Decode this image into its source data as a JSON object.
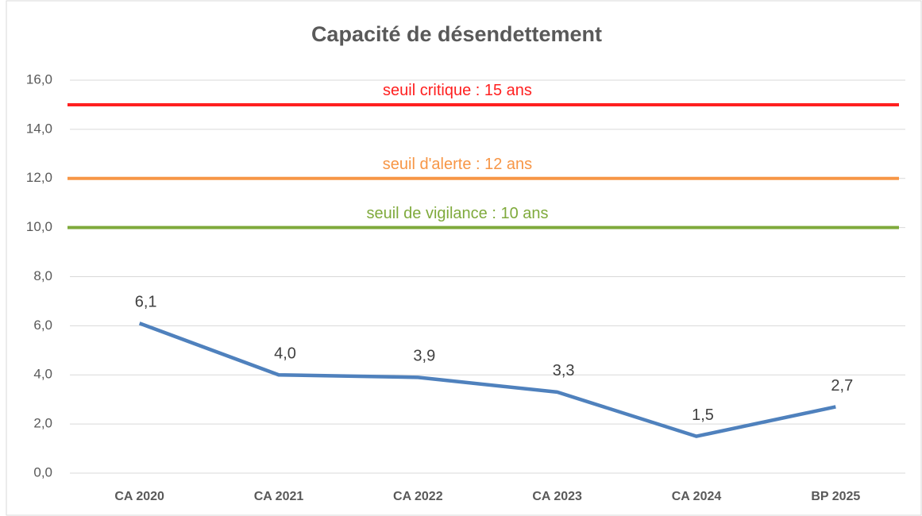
{
  "chart_data": {
    "type": "line",
    "title": "Capacité de désendettement",
    "categories": [
      "CA 2020",
      "CA 2021",
      "CA 2022",
      "CA 2023",
      "CA 2024",
      "BP 2025"
    ],
    "series": [
      {
        "color": "#4f81bd",
        "values": [
          6.1,
          4.0,
          3.9,
          3.3,
          1.5,
          2.7
        ],
        "value_labels": [
          "6,1",
          "4,0",
          "3,9",
          "3,3",
          "1,5",
          "2,7"
        ]
      }
    ],
    "thresholds": [
      {
        "label": "seuil critique : 15 ans",
        "value": 15,
        "color": "#ff2020"
      },
      {
        "label": "seuil d'alerte : 12 ans",
        "value": 12,
        "color": "#f79646"
      },
      {
        "label": "seuil de vigilance : 10 ans",
        "value": 10,
        "color": "#7faa3c"
      }
    ],
    "ylim": [
      0,
      16
    ],
    "yticks": [
      {
        "value": 0,
        "label": "0,0"
      },
      {
        "value": 2,
        "label": "2,0"
      },
      {
        "value": 4,
        "label": "4,0"
      },
      {
        "value": 6,
        "label": "6,0"
      },
      {
        "value": 8,
        "label": "8,0"
      },
      {
        "value": 10,
        "label": "10,0"
      },
      {
        "value": 12,
        "label": "12,0"
      },
      {
        "value": 14,
        "label": "14,0"
      },
      {
        "value": 16,
        "label": "16,0"
      }
    ],
    "grid": true
  }
}
